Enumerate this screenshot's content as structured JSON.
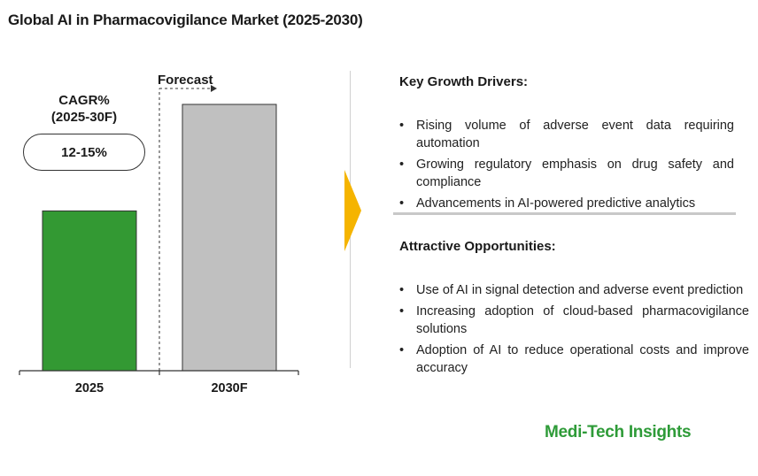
{
  "title": "Global AI in Pharmacovigilance Market (2025-2030)",
  "cagr": {
    "label_line1": "CAGR%",
    "label_line2": "(2025-30F)",
    "value": "12-15%"
  },
  "forecast_label": "Forecast",
  "chart_data": {
    "type": "bar",
    "categories": [
      "2025",
      "2030F"
    ],
    "values": [
      0.6,
      1.0
    ],
    "value_note_unit": "relative height (no axis printed)",
    "colors": [
      "#339933",
      "#c0c0c0"
    ],
    "grid": false
  },
  "drivers": {
    "title": "Key Growth Drivers:",
    "items": [
      "Rising volume of adverse event data requiring automation",
      "Growing regulatory emphasis on drug safety and compliance",
      "Advancements in AI-powered predictive analytics"
    ]
  },
  "opportunities": {
    "title": "Attractive Opportunities:",
    "items": [
      "Use of AI in signal detection and adverse event prediction",
      "Increasing adoption of cloud-based pharmacovigilance solutions",
      "Adoption of AI to reduce operational costs and improve accuracy"
    ]
  },
  "brand": "Medi-Tech Insights",
  "accent_colors": {
    "arrow": "#f5b400",
    "brand": "#2e9b38"
  }
}
